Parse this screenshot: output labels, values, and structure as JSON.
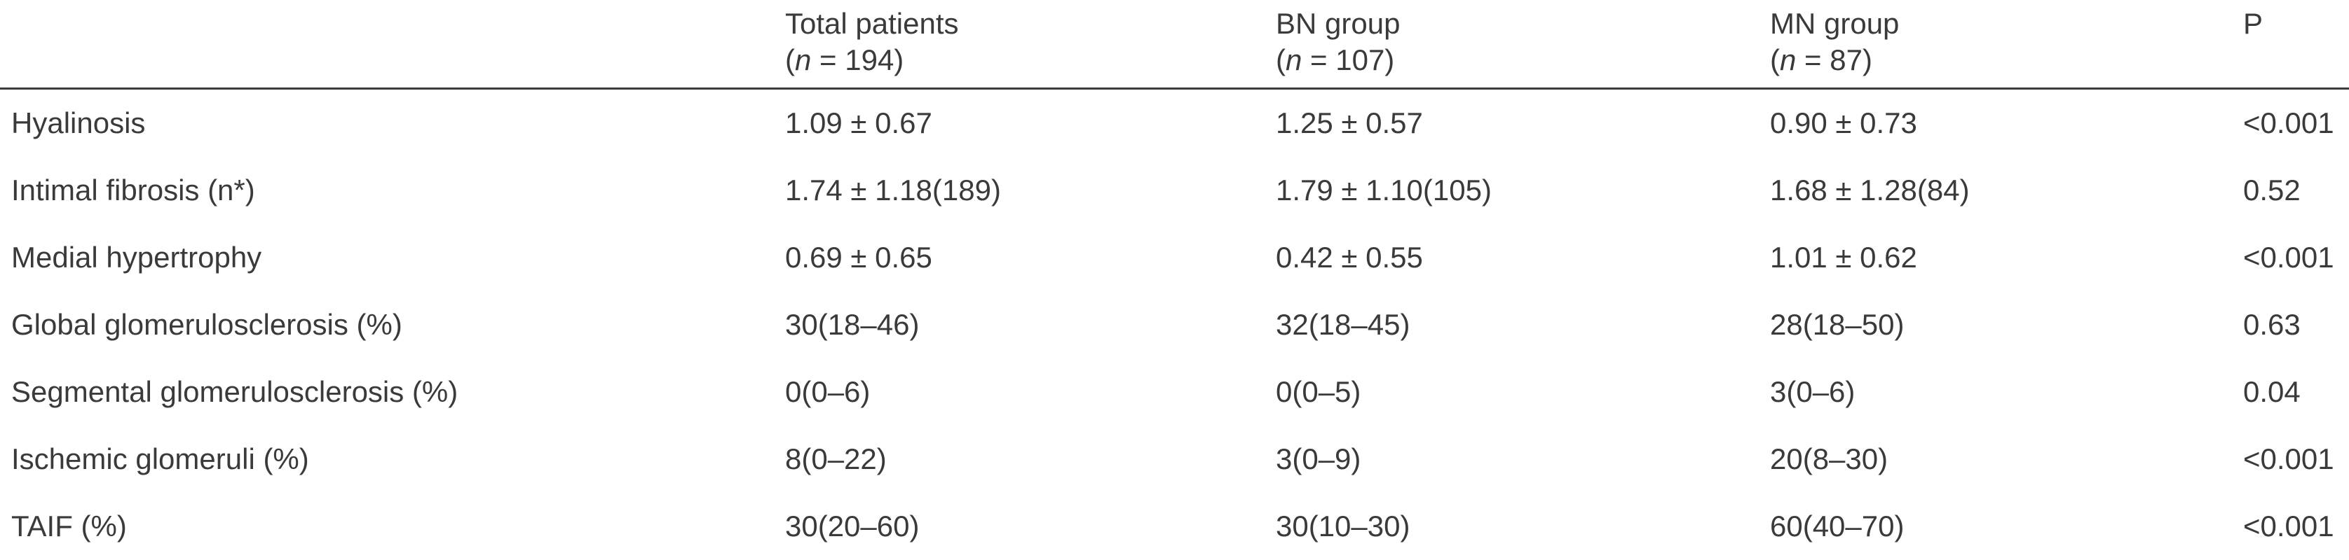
{
  "header": {
    "total": {
      "label": "Total patients",
      "n_prefix": "(",
      "n_var": "n",
      "n_rest": " = 194)"
    },
    "bn": {
      "label": "BN group",
      "n_prefix": "(",
      "n_var": "n",
      "n_rest": " = 107)"
    },
    "mn": {
      "label": "MN group",
      "n_prefix": "(",
      "n_var": "n",
      "n_rest": " = 87)"
    },
    "p": {
      "label": "P"
    }
  },
  "rows": [
    {
      "label": "Hyalinosis",
      "total": "1.09 ± 0.67",
      "bn": "1.25 ± 0.57",
      "mn": "0.90 ± 0.73",
      "p": "<0.001"
    },
    {
      "label": "Intimal fibrosis (n*)",
      "total": "1.74 ± 1.18(189)",
      "bn": "1.79 ± 1.10(105)",
      "mn": "1.68 ± 1.28(84)",
      "p": "0.52"
    },
    {
      "label": "Medial hypertrophy",
      "total": "0.69 ± 0.65",
      "bn": "0.42 ± 0.55",
      "mn": "1.01 ± 0.62",
      "p": "<0.001"
    },
    {
      "label": "Global glomerulosclerosis (%)",
      "total": "30(18–46)",
      "bn": "32(18–45)",
      "mn": "28(18–50)",
      "p": "0.63"
    },
    {
      "label": "Segmental glomerulosclerosis (%)",
      "total": "0(0–6)",
      "bn": "0(0–5)",
      "mn": "3(0–6)",
      "p": "0.04"
    },
    {
      "label": "Ischemic glomeruli (%)",
      "total": "8(0–22)",
      "bn": "3(0–9)",
      "mn": "20(8–30)",
      "p": "<0.001"
    },
    {
      "label": "TAIF (%)",
      "total": "30(20–60)",
      "bn": "30(10–30)",
      "mn": "60(40–70)",
      "p": "<0.001"
    }
  ]
}
